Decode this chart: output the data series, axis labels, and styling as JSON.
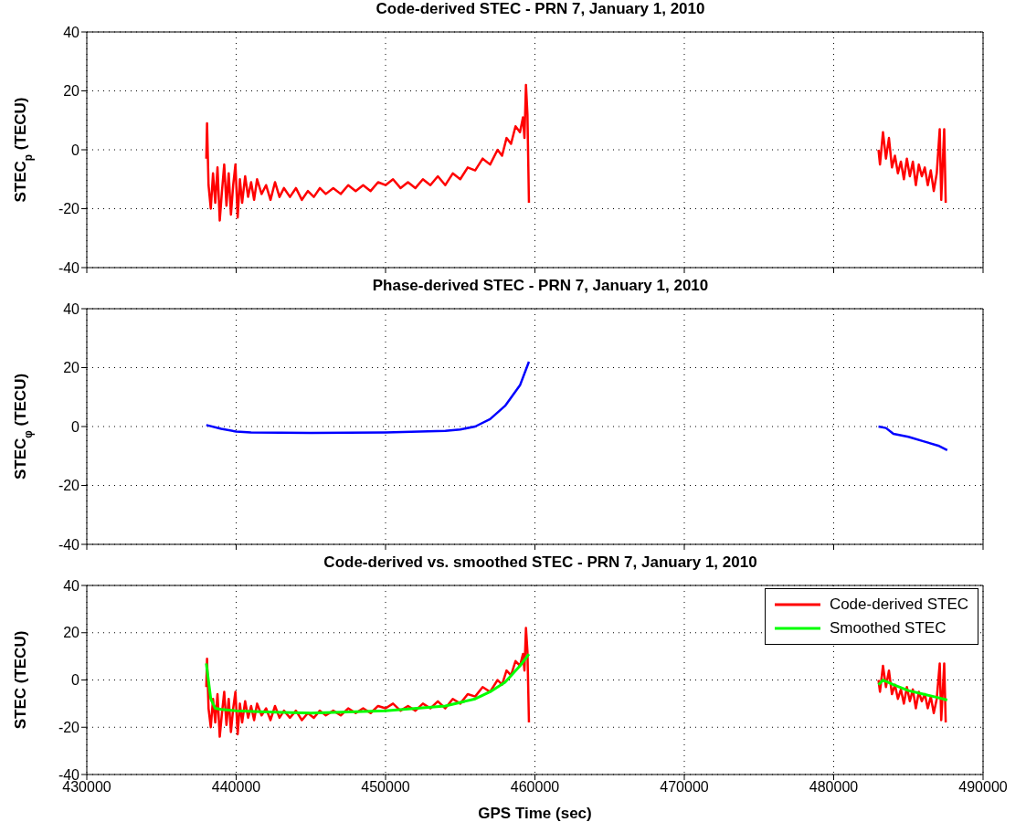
{
  "chart_data": [
    {
      "type": "line",
      "title": "Code-derived STEC - PRN 7, January 1, 2010",
      "ylabel": "STEC$_{p}$ (TECU)",
      "xlim": [
        430000,
        490000
      ],
      "xticks": [
        430000,
        440000,
        450000,
        460000,
        470000,
        480000,
        490000
      ],
      "ylim": [
        -40,
        40
      ],
      "yticks": [
        -40,
        -20,
        0,
        20,
        40
      ],
      "grid": true,
      "tick_labels": "y",
      "legend": false,
      "series": [
        {
          "color": "#ff0000",
          "x": [
            438000,
            438050,
            438150,
            438300,
            438450,
            438600,
            438750,
            438900,
            439050,
            439200,
            439350,
            439500,
            439650,
            439800,
            439950,
            440100,
            440250,
            440400,
            440600,
            440800,
            441000,
            441200,
            441400,
            441700,
            442000,
            442300,
            442600,
            442900,
            443200,
            443600,
            444000,
            444400,
            444800,
            445200,
            445600,
            446000,
            446500,
            447000,
            447500,
            448000,
            448500,
            449000,
            449500,
            450000,
            450500,
            451000,
            451500,
            452000,
            452500,
            453000,
            453500,
            454000,
            454500,
            455000,
            455500,
            456000,
            456500,
            457000,
            457500,
            457800,
            458100,
            458400,
            458700,
            459000,
            459200,
            459300,
            459400,
            459500,
            459600,
            471000,
            483000,
            483100,
            483300,
            483500,
            483700,
            483900,
            484100,
            484300,
            484500,
            484700,
            484900,
            485100,
            485300,
            485500,
            485700,
            485900,
            486100,
            486300,
            486500,
            486700,
            486900,
            487100,
            487200,
            487400,
            487500
          ],
          "values": [
            -3,
            9,
            -12,
            -20,
            -8,
            -18,
            -6,
            -24,
            -14,
            -5,
            -19,
            -8,
            -22,
            -12,
            -5,
            -23,
            -10,
            -18,
            -9,
            -16,
            -11,
            -17,
            -10,
            -15,
            -12,
            -17,
            -11,
            -16,
            -13,
            -16,
            -13,
            -17,
            -14,
            -16,
            -13,
            -15,
            -13,
            -15,
            -12,
            -14,
            -12,
            -14,
            -11,
            -12,
            -10,
            -13,
            -11,
            -13,
            -10,
            -12,
            -9,
            -12,
            -8,
            -10,
            -6,
            -7,
            -3,
            -5,
            0,
            -2,
            4,
            2,
            8,
            6,
            11,
            4,
            22,
            12,
            -18,
            null,
            0,
            -5,
            6,
            -3,
            4,
            -6,
            -2,
            -8,
            -4,
            -10,
            -3,
            -9,
            -4,
            -12,
            -5,
            -9,
            -6,
            -12,
            -7,
            -14,
            -8,
            7,
            -17,
            7,
            -18
          ]
        }
      ]
    },
    {
      "type": "line",
      "title": "Phase-derived STEC - PRN 7, January 1, 2010",
      "ylabel": "STEC$_{φ}$ (TECU)",
      "xlim": [
        430000,
        490000
      ],
      "xticks": [
        430000,
        440000,
        450000,
        460000,
        470000,
        480000,
        490000
      ],
      "ylim": [
        -40,
        40
      ],
      "yticks": [
        -40,
        -20,
        0,
        20,
        40
      ],
      "grid": true,
      "tick_labels": "y",
      "legend": false,
      "series": [
        {
          "color": "#0000ff",
          "x": [
            438000,
            439000,
            440000,
            441000,
            445000,
            450000,
            454000,
            455000,
            456000,
            457000,
            458000,
            459000,
            459600,
            471000,
            483000,
            483500,
            484000,
            485000,
            486000,
            487000,
            487600
          ],
          "values": [
            0.5,
            -0.8,
            -1.7,
            -2,
            -2.2,
            -2,
            -1.5,
            -1,
            0,
            2.5,
            7,
            14,
            22,
            null,
            0,
            -0.5,
            -2.5,
            -3.5,
            -5,
            -6.5,
            -8
          ]
        }
      ]
    },
    {
      "type": "line",
      "title": "Code-derived vs. smoothed STEC - PRN 7, January 1, 2010",
      "xlabel": "GPS Time (sec)",
      "ylabel": "STEC (TECU)",
      "xlim": [
        430000,
        490000
      ],
      "xticks": [
        430000,
        440000,
        450000,
        460000,
        470000,
        480000,
        490000
      ],
      "ylim": [
        -40,
        40
      ],
      "yticks": [
        -40,
        -20,
        0,
        20,
        40
      ],
      "grid": true,
      "legend": "top right",
      "series": [
        {
          "name": "Code-derived STEC",
          "color": "#ff0000",
          "x": [
            438000,
            438050,
            438150,
            438300,
            438450,
            438600,
            438750,
            438900,
            439050,
            439200,
            439350,
            439500,
            439650,
            439800,
            439950,
            440100,
            440250,
            440400,
            440600,
            440800,
            441000,
            441200,
            441400,
            441700,
            442000,
            442300,
            442600,
            442900,
            443200,
            443600,
            444000,
            444400,
            444800,
            445200,
            445600,
            446000,
            446500,
            447000,
            447500,
            448000,
            448500,
            449000,
            449500,
            450000,
            450500,
            451000,
            451500,
            452000,
            452500,
            453000,
            453500,
            454000,
            454500,
            455000,
            455500,
            456000,
            456500,
            457000,
            457500,
            457800,
            458100,
            458400,
            458700,
            459000,
            459200,
            459300,
            459400,
            459500,
            459600,
            471000,
            483000,
            483100,
            483300,
            483500,
            483700,
            483900,
            484100,
            484300,
            484500,
            484700,
            484900,
            485100,
            485300,
            485500,
            485700,
            485900,
            486100,
            486300,
            486500,
            486700,
            486900,
            487100,
            487200,
            487400,
            487500
          ],
          "values": [
            -3,
            9,
            -12,
            -20,
            -8,
            -18,
            -6,
            -24,
            -14,
            -5,
            -19,
            -8,
            -22,
            -12,
            -5,
            -23,
            -10,
            -18,
            -9,
            -16,
            -11,
            -17,
            -10,
            -15,
            -12,
            -17,
            -11,
            -16,
            -13,
            -16,
            -13,
            -17,
            -14,
            -16,
            -13,
            -15,
            -13,
            -15,
            -12,
            -14,
            -12,
            -14,
            -11,
            -12,
            -10,
            -13,
            -11,
            -13,
            -10,
            -12,
            -9,
            -12,
            -8,
            -10,
            -6,
            -7,
            -3,
            -5,
            0,
            -2,
            4,
            2,
            8,
            6,
            11,
            4,
            22,
            12,
            -18,
            null,
            0,
            -5,
            6,
            -3,
            4,
            -6,
            -2,
            -8,
            -4,
            -10,
            -3,
            -9,
            -4,
            -12,
            -5,
            -9,
            -6,
            -12,
            -7,
            -14,
            -8,
            7,
            -17,
            7,
            -18
          ]
        },
        {
          "name": "Smoothed STEC",
          "color": "#00ff00",
          "x": [
            438000,
            438300,
            438600,
            439000,
            440000,
            442000,
            445000,
            450000,
            454000,
            456000,
            457000,
            458000,
            459000,
            459600,
            471000,
            483000,
            483300,
            484000,
            485000,
            486000,
            487000,
            487600
          ],
          "values": [
            7,
            -8,
            -12,
            -12.5,
            -13,
            -13.5,
            -14,
            -13,
            -11,
            -8,
            -5,
            -1,
            6,
            11,
            null,
            -2,
            0,
            -2,
            -4.5,
            -6,
            -7.5,
            -8.5
          ]
        }
      ]
    }
  ]
}
